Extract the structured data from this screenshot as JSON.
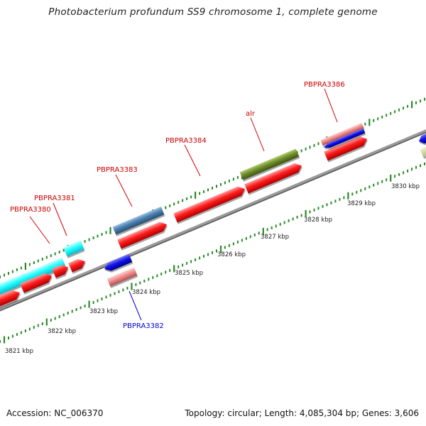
{
  "title": "Photobacterium profundum SS9 chromosome 1, complete genome",
  "footer": {
    "accession": "Accession: NC_006370",
    "summary": "Topology: circular; Length: 4,085,304 bp; Genes: 3,606"
  },
  "colors": {
    "forward_cds": "#ff1c1c",
    "reverse_cds": "#1010e8",
    "pseudo": "#ee8888",
    "highlight": "#22ffff",
    "steel": "#4a7fb0",
    "olive": "#6e8e2a",
    "backbone": "#8a8a8a",
    "ticks": "#2a8a2a",
    "label_red": "#cc0000",
    "label_blue": "#0000cc"
  },
  "scale_labels": [
    "3821 kbp",
    "3822 kbp",
    "3823 kbp",
    "3824 kbp",
    "3825 kbp",
    "3826 kbp",
    "3827 kbp",
    "3828 kbp",
    "3829 kbp",
    "3830 kbp"
  ],
  "gene_labels": [
    {
      "id": "PBPRA3380",
      "text": "PBPRA3380",
      "strand": "forward"
    },
    {
      "id": "PBPRA3381",
      "text": "PBPRA3381",
      "strand": "forward"
    },
    {
      "id": "PBPRA3382",
      "text": "PBPRA3382",
      "strand": "reverse"
    },
    {
      "id": "PBPRA3383",
      "text": "PBPRA3383",
      "strand": "forward"
    },
    {
      "id": "PBPRA3384",
      "text": "PBPRA3384",
      "strand": "forward"
    },
    {
      "id": "alr",
      "text": "alr",
      "strand": "forward"
    },
    {
      "id": "PBPRA3386",
      "text": "PBPRA3386",
      "strand": "forward"
    }
  ]
}
